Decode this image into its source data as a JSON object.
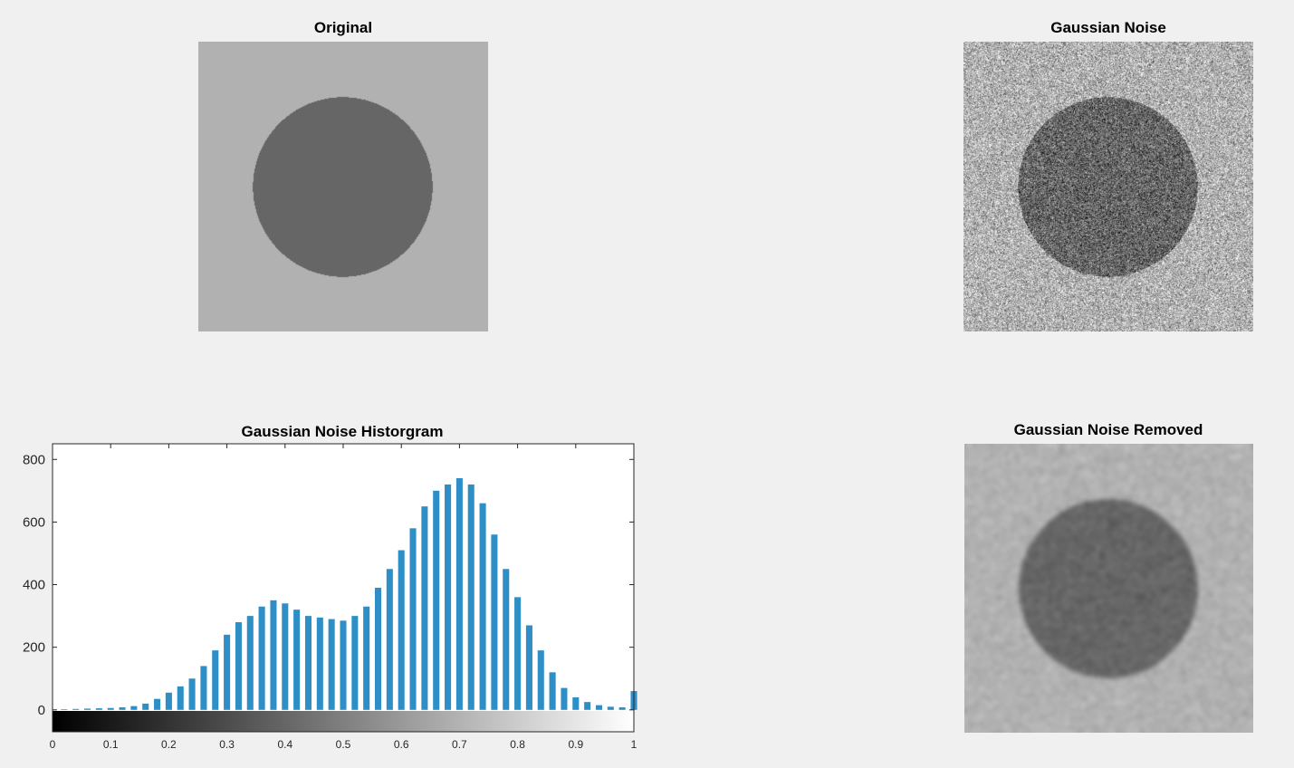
{
  "panels": {
    "original": {
      "title": "Original"
    },
    "noisy": {
      "title": "Gaussian Noise"
    },
    "filtered": {
      "title": "Gaussian Noise Removed"
    }
  },
  "colors": {
    "background": "#f0f0f0",
    "image_background_gray": "#b1b1b1",
    "image_circle_gray": "#666666",
    "bar_color": "#2e8fc7"
  },
  "chart_data": {
    "type": "bar",
    "title": "Gaussian Noise Historgram",
    "xlabel": "",
    "ylabel": "",
    "xlim": [
      0,
      1
    ],
    "ylim": [
      -70,
      850
    ],
    "y_ticks": [
      0,
      200,
      400,
      600,
      800
    ],
    "x_ticks": [
      0,
      0.1,
      0.2,
      0.3,
      0.4,
      0.5,
      0.6,
      0.7,
      0.8,
      0.9,
      1
    ],
    "x_tick_labels": [
      "0",
      "0.1",
      "0.2",
      "0.3",
      "0.4",
      "0.5",
      "0.6",
      "0.7",
      "0.8",
      "0.9",
      "1"
    ],
    "y_tick_labels": [
      "0",
      "200",
      "400",
      "600",
      "800"
    ],
    "colorbar": "grayscale 0 to 1 beneath x-axis",
    "grid": false,
    "bin_centers": [
      0.02,
      0.04,
      0.06,
      0.08,
      0.1,
      0.12,
      0.14,
      0.16,
      0.18,
      0.2,
      0.22,
      0.24,
      0.26,
      0.28,
      0.3,
      0.32,
      0.34,
      0.36,
      0.38,
      0.4,
      0.42,
      0.44,
      0.46,
      0.48,
      0.5,
      0.52,
      0.54,
      0.56,
      0.58,
      0.6,
      0.62,
      0.64,
      0.66,
      0.68,
      0.7,
      0.72,
      0.74,
      0.76,
      0.78,
      0.8,
      0.82,
      0.84,
      0.86,
      0.88,
      0.9,
      0.92,
      0.94,
      0.96,
      0.98,
      1.0
    ],
    "values": [
      2,
      3,
      4,
      5,
      6,
      8,
      12,
      20,
      35,
      55,
      75,
      100,
      140,
      190,
      240,
      280,
      300,
      330,
      350,
      340,
      320,
      300,
      295,
      290,
      285,
      300,
      330,
      390,
      450,
      510,
      580,
      650,
      700,
      720,
      740,
      720,
      660,
      560,
      450,
      360,
      270,
      190,
      120,
      70,
      40,
      25,
      15,
      10,
      8,
      60
    ]
  }
}
